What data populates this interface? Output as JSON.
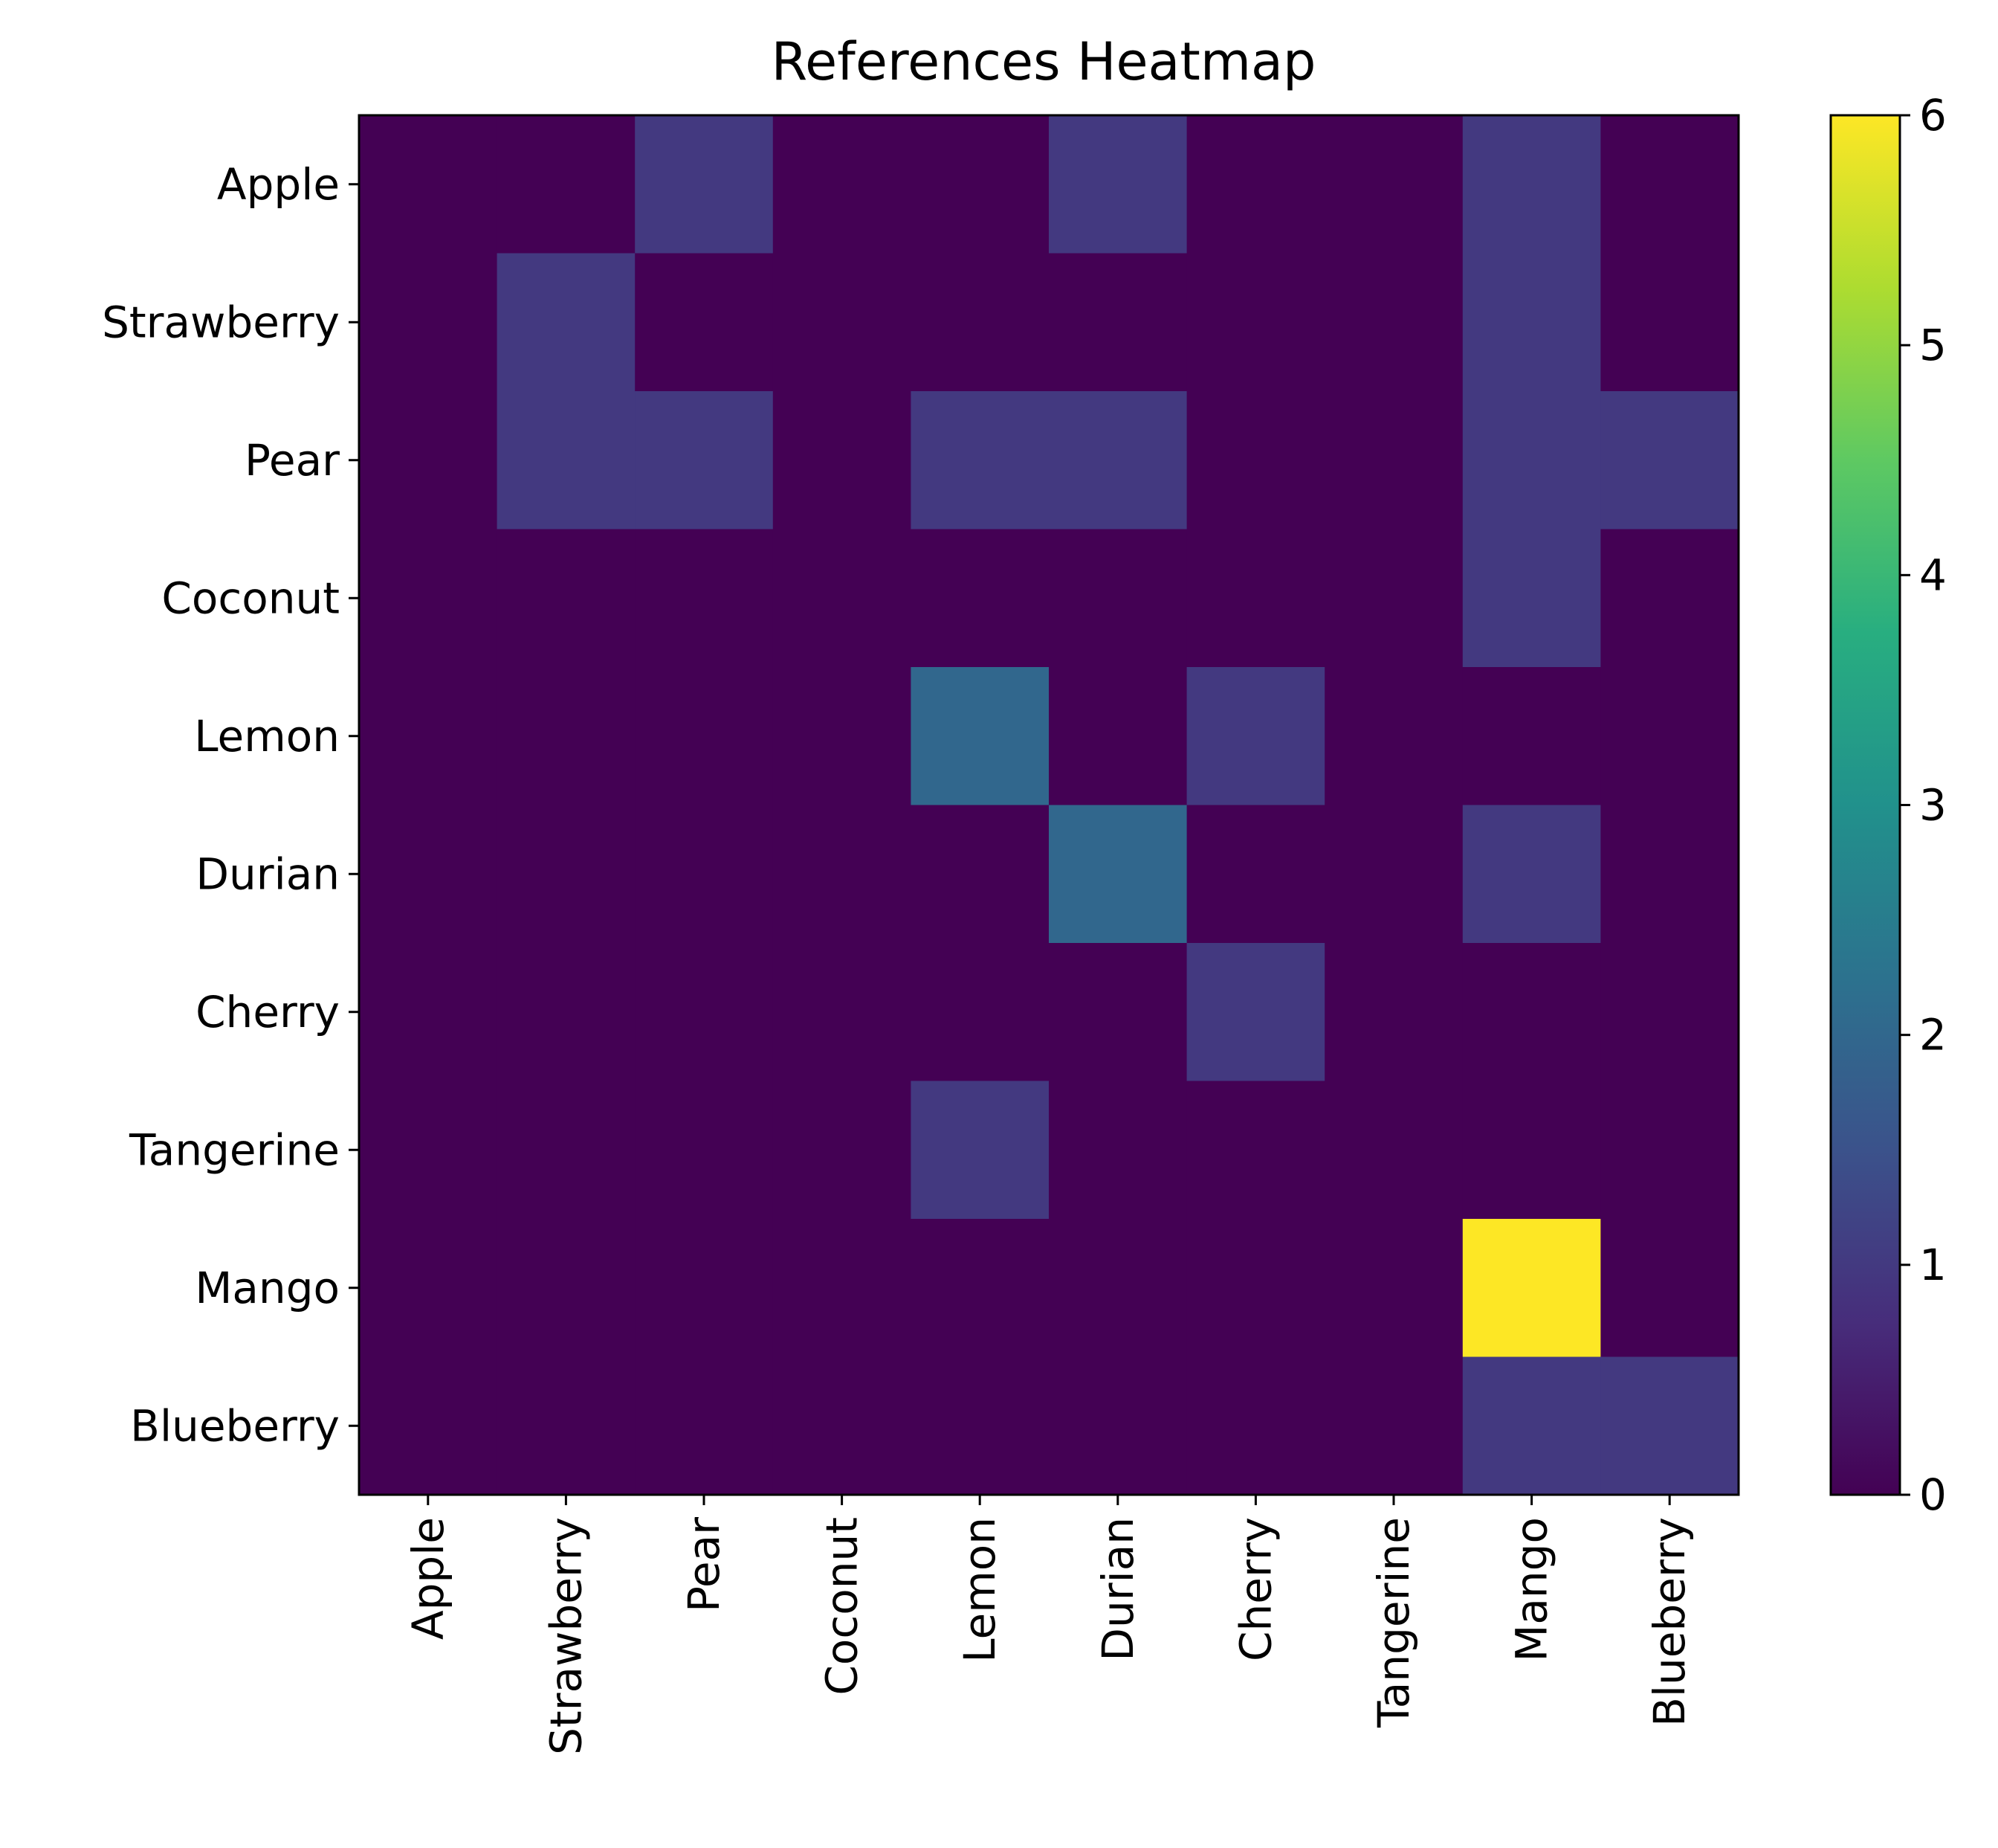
{
  "chart_data": {
    "type": "heatmap",
    "title": "References Heatmap",
    "xlabel": "",
    "ylabel": "",
    "x_categories": [
      "Apple",
      "Strawberry",
      "Pear",
      "Coconut",
      "Lemon",
      "Durian",
      "Cherry",
      "Tangerine",
      "Mango",
      "Blueberry"
    ],
    "y_categories": [
      "Apple",
      "Strawberry",
      "Pear",
      "Coconut",
      "Lemon",
      "Durian",
      "Cherry",
      "Tangerine",
      "Mango",
      "Blueberry"
    ],
    "values": [
      [
        0,
        0,
        1,
        0,
        0,
        1,
        0,
        0,
        1,
        0
      ],
      [
        0,
        1,
        0,
        0,
        0,
        0,
        0,
        0,
        1,
        0
      ],
      [
        0,
        1,
        1,
        0,
        1,
        1,
        0,
        0,
        1,
        1
      ],
      [
        0,
        0,
        0,
        0,
        0,
        0,
        0,
        0,
        1,
        0
      ],
      [
        0,
        0,
        0,
        0,
        2,
        0,
        1,
        0,
        0,
        0
      ],
      [
        0,
        0,
        0,
        0,
        0,
        2,
        0,
        0,
        1,
        0
      ],
      [
        0,
        0,
        0,
        0,
        0,
        0,
        1,
        0,
        0,
        0
      ],
      [
        0,
        0,
        0,
        0,
        1,
        0,
        0,
        0,
        0,
        0
      ],
      [
        0,
        0,
        0,
        0,
        0,
        0,
        0,
        0,
        6,
        0
      ],
      [
        0,
        0,
        0,
        0,
        0,
        0,
        0,
        0,
        1,
        1
      ]
    ],
    "colormap": "viridis",
    "colorbar": {
      "range": [
        0,
        6
      ],
      "ticks": [
        "0",
        "1",
        "2",
        "3",
        "4",
        "5",
        "6"
      ]
    },
    "grid": false,
    "legend": "none"
  }
}
